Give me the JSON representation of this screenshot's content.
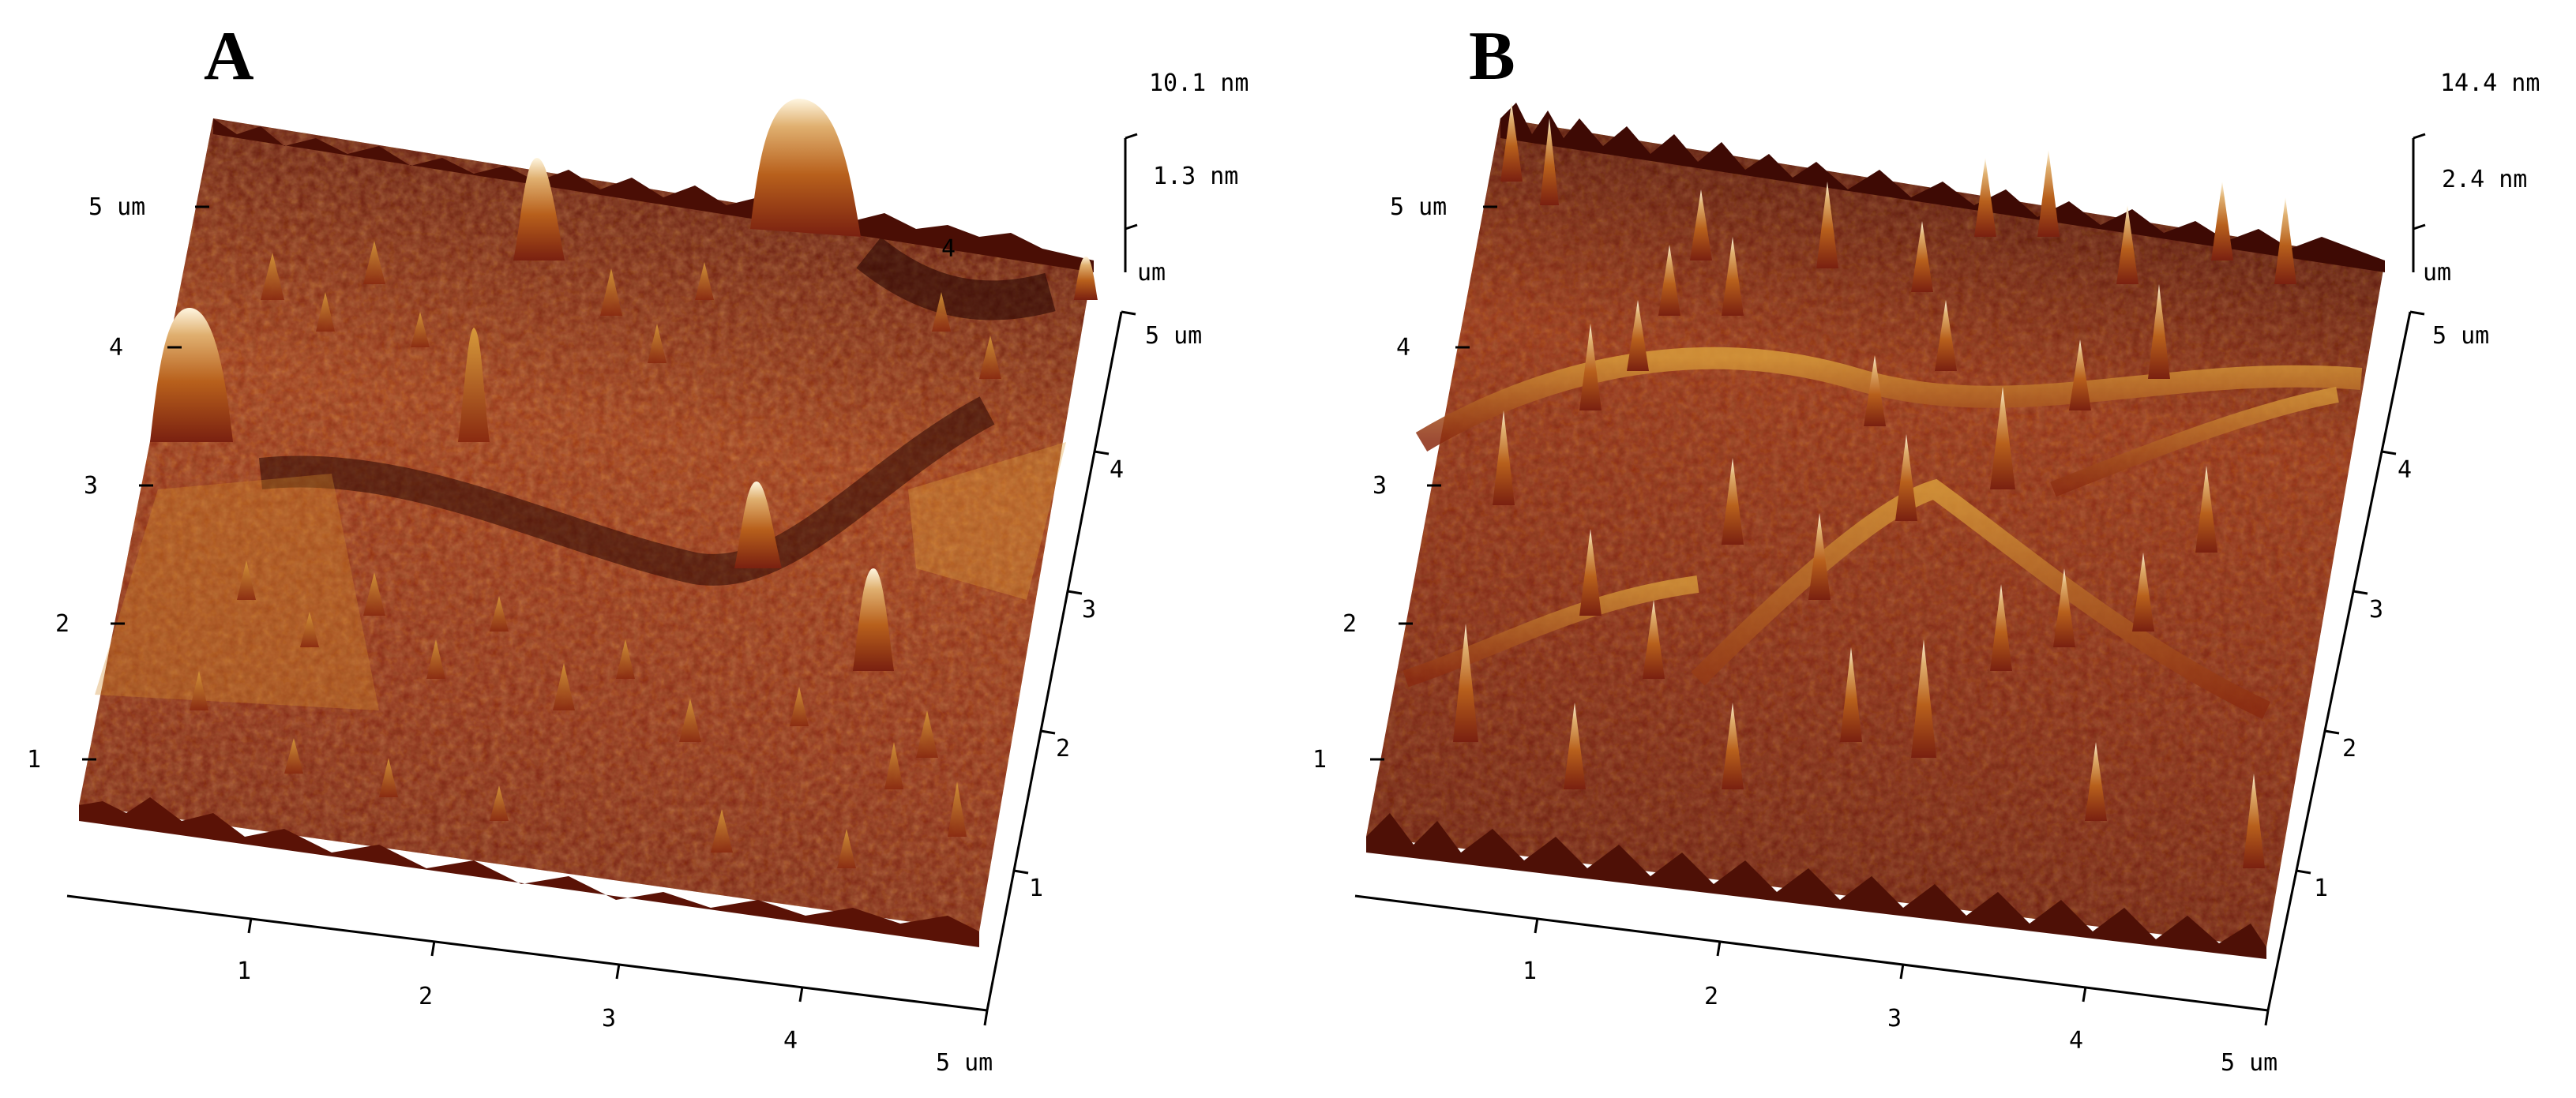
{
  "panels": [
    {
      "label": "A",
      "z_max": "10.1 nm",
      "z_tick": "1.3 nm",
      "z_unit": "um",
      "y_ticks": [
        "5 um",
        "4",
        "3",
        "2",
        "1"
      ],
      "x_ticks": [
        "1",
        "2",
        "3",
        "4",
        "5 um"
      ],
      "r_ticks": [
        "5 um",
        "4",
        "3",
        "2",
        "1"
      ],
      "inner_label": "4",
      "surface_description": "AFM topography, moderate roughness, few tall peaks",
      "colors": {
        "dark": "#3a0a06",
        "mid": "#8e2a12",
        "light": "#d7902a",
        "peak": "#fff6e0"
      }
    },
    {
      "label": "B",
      "z_max": "14.4 nm",
      "z_tick": "2.4 nm",
      "z_unit": "um",
      "y_ticks": [
        "5 um",
        "4",
        "3",
        "2",
        "1"
      ],
      "x_ticks": [
        "1",
        "2",
        "3",
        "4",
        "5 um"
      ],
      "r_ticks": [
        "5 um",
        "4",
        "3",
        "2",
        "1"
      ],
      "inner_label": "",
      "surface_description": "AFM topography, high roughness, many sharp peaks",
      "colors": {
        "dark": "#3a0a06",
        "mid": "#8e2a12",
        "light": "#d7902a",
        "peak": "#fff6e0"
      }
    }
  ]
}
